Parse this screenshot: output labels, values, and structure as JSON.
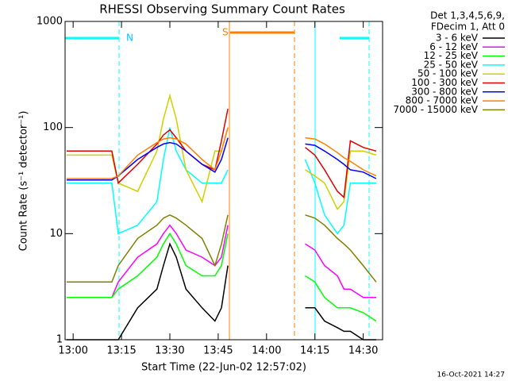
{
  "chart_data": {
    "type": "line",
    "title": "RHESSI Observing Summary Count Rates",
    "xlabel": "Start Time (22-Jun-02 12:57:02)",
    "ylabel": "Count Rate (s⁻¹ detector⁻¹)",
    "legend_header": [
      "Det 1,3,4,5,6,9,",
      "FDecim 1, Att 0"
    ],
    "footer": "16-Oct-2021 14:27",
    "annotations": [
      "N",
      "S"
    ],
    "log_y": true,
    "xlim": [
      777.5,
      876
    ],
    "ylim": [
      1,
      1000
    ],
    "xticks": [
      {
        "value": 780,
        "label": "13:00"
      },
      {
        "value": 795,
        "label": "13:15"
      },
      {
        "value": 810,
        "label": "13:30"
      },
      {
        "value": 825,
        "label": "13:45"
      },
      {
        "value": 840,
        "label": "14:00"
      },
      {
        "value": 855,
        "label": "14:15"
      },
      {
        "value": 870,
        "label": "14:30"
      }
    ],
    "yticks": [
      1,
      10,
      100,
      1000
    ],
    "x": [
      778,
      785,
      792,
      794,
      800,
      806,
      808,
      810,
      812,
      815,
      820,
      824,
      826,
      828,
      840,
      852,
      855,
      858,
      862,
      864,
      866,
      870,
      874
    ],
    "series": [
      {
        "name": "3 - 6 keV",
        "color": "#000000",
        "values": [
          1,
          1,
          1,
          1,
          2,
          3,
          5,
          8,
          6,
          3,
          2,
          1.5,
          2,
          5,
          null,
          2,
          2,
          1.5,
          1.3,
          1.2,
          1.2,
          1,
          1
        ]
      },
      {
        "name": "6 - 12 keV",
        "color": "#ff00ff",
        "values": [
          2.5,
          2.5,
          2.5,
          3.5,
          6,
          8,
          10,
          12,
          10,
          7,
          6,
          5,
          6,
          12,
          null,
          8,
          7,
          5,
          4,
          3,
          3,
          2.5,
          2.5
        ]
      },
      {
        "name": "12 - 25 keV",
        "color": "#00ff00",
        "values": [
          2.5,
          2.5,
          2.5,
          3,
          4,
          6,
          8,
          10,
          8,
          5,
          4,
          4,
          5,
          10,
          null,
          4,
          3.5,
          2.5,
          2,
          2,
          2,
          1.8,
          1.5
        ]
      },
      {
        "name": "25 - 50 keV",
        "color": "#00ffff",
        "values": [
          30,
          30,
          30,
          10,
          12,
          20,
          50,
          100,
          60,
          40,
          30,
          30,
          30,
          40,
          null,
          50,
          30,
          15,
          10,
          12,
          30,
          30,
          30
        ]
      },
      {
        "name": "50 - 100 keV",
        "color": "#d0d000",
        "values": [
          55,
          55,
          55,
          30,
          25,
          60,
          120,
          200,
          120,
          40,
          20,
          60,
          60,
          100,
          null,
          40,
          35,
          30,
          17,
          20,
          60,
          60,
          55
        ]
      },
      {
        "name": "100 - 300 keV",
        "color": "#e00000",
        "values": [
          60,
          60,
          60,
          30,
          45,
          70,
          85,
          95,
          80,
          60,
          45,
          40,
          75,
          150,
          null,
          65,
          55,
          40,
          25,
          22,
          75,
          65,
          60
        ]
      },
      {
        "name": "300 - 800 keV",
        "color": "#0000ff",
        "values": [
          32,
          32,
          32,
          35,
          50,
          65,
          70,
          72,
          70,
          60,
          45,
          38,
          50,
          80,
          null,
          70,
          68,
          60,
          50,
          45,
          40,
          38,
          33
        ]
      },
      {
        "name": "800 - 7000 keV",
        "color": "#ff8000",
        "values": [
          33,
          33,
          33,
          35,
          55,
          72,
          78,
          80,
          78,
          70,
          50,
          40,
          60,
          100,
          null,
          80,
          78,
          70,
          58,
          52,
          48,
          40,
          35
        ]
      },
      {
        "name": "7000 - 15000 keV",
        "color": "#808000",
        "values": [
          3.5,
          3.5,
          3.5,
          5,
          9,
          12,
          14,
          15,
          14,
          12,
          9,
          5,
          8,
          15,
          null,
          15,
          14,
          12,
          9,
          8,
          7,
          5,
          3.5
        ]
      }
    ]
  }
}
